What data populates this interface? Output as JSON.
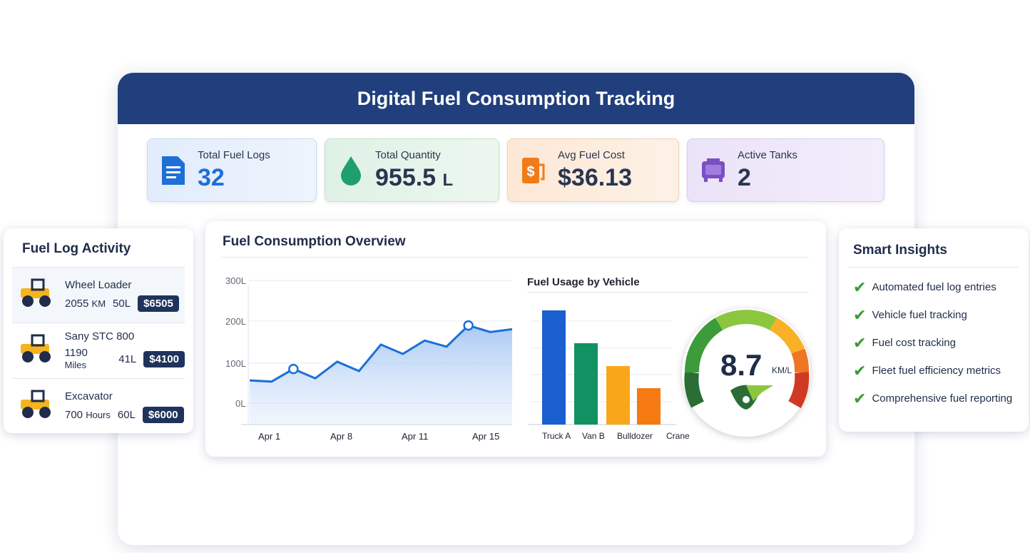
{
  "title": "Digital Fuel Consumption Tracking",
  "stats": [
    {
      "label": "Total Fuel Logs",
      "value": "32",
      "icon": "document-icon",
      "color": "#1e6fd8"
    },
    {
      "label": "Total Quantity",
      "value": "955.5",
      "unit": "L",
      "icon": "droplet-icon",
      "color": "#1f9e6e"
    },
    {
      "label": "Avg Fuel Cost",
      "value": "$36.13",
      "icon": "fuel-pump-icon",
      "color": "#f07b1a"
    },
    {
      "label": "Active Tanks",
      "value": "2",
      "icon": "tank-icon",
      "color": "#7b4fc4"
    }
  ],
  "activity": {
    "title": "Fuel Log Activity",
    "items": [
      {
        "name": "Wheel Loader",
        "distance": "2055",
        "dist_unit": "KM",
        "qty": "50L",
        "cost": "$6505",
        "icon": "wheel-loader-icon"
      },
      {
        "name": "Sany STC 800",
        "distance": "1190",
        "dist_unit": "Miles",
        "qty": "41L",
        "cost": "$4100",
        "icon": "excavator-icon"
      },
      {
        "name": "Excavator",
        "distance": "700",
        "dist_unit": "Hours",
        "qty": "60L",
        "cost": "$6000",
        "icon": "skid-loader-icon"
      }
    ]
  },
  "overview": {
    "title": "Fuel Consumption Overview",
    "bar_title": "Fuel Usage by Vehicle",
    "gauge_value": "8.7",
    "gauge_unit": "KM/L"
  },
  "insights": {
    "title": "Smart Insights",
    "items": [
      "Automated fuel log entries",
      "Vehicle fuel tracking",
      "Fuel cost tracking",
      "Fleet fuel efficiency metrics",
      "Comprehensive fuel reporting"
    ]
  },
  "chart_data": [
    {
      "type": "area",
      "title": "Fuel Consumption Overview",
      "yticks": [
        "300L",
        "200L",
        "100L",
        "0L"
      ],
      "ylim": [
        0,
        300
      ],
      "xticks": [
        "Apr 1",
        "Apr 8",
        "Apr 11",
        "Apr 15"
      ],
      "values": [
        56,
        53,
        84,
        61,
        102,
        79,
        144,
        121,
        154,
        139,
        191,
        175,
        182
      ],
      "markers": [
        2,
        10
      ]
    },
    {
      "type": "bar",
      "title": "Fuel Usage by Vehicle",
      "categories": [
        "Truck A",
        "Van B",
        "Bulldozer",
        "Crane"
      ],
      "values": [
        160,
        114,
        82,
        51
      ],
      "colors": [
        "#1a5fd0",
        "#129262",
        "#f9a71a",
        "#f57a12"
      ]
    }
  ]
}
